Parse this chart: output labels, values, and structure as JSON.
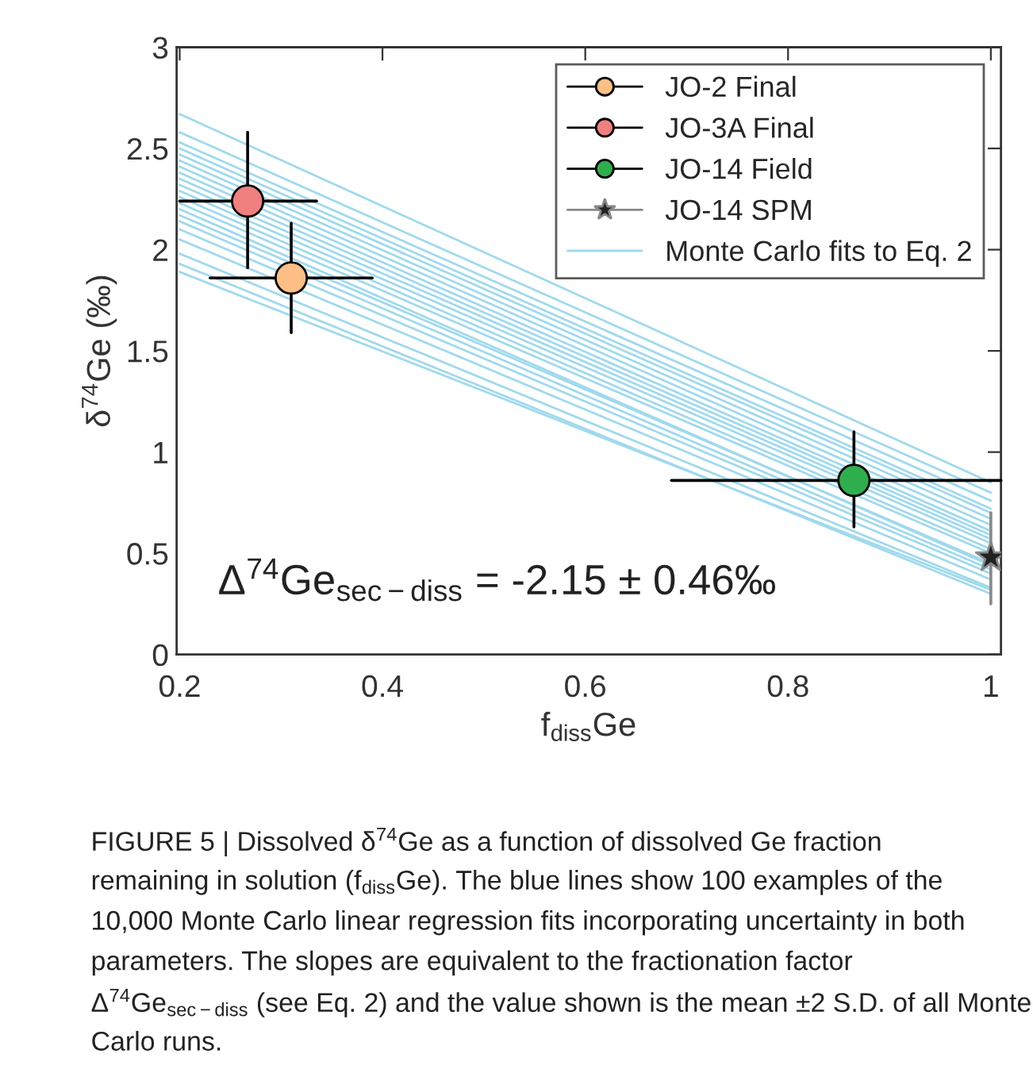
{
  "chart_data": {
    "type": "scatter",
    "xlabel": "f$_{diss}$Ge",
    "ylabel": "δ$^{74}$Ge (‰)",
    "xlim": [
      0.197,
      1.01
    ],
    "xticks": [
      0.2,
      0.4,
      0.6,
      0.8,
      1
    ],
    "ylim": [
      0,
      3
    ],
    "yticks": [
      0,
      0.5,
      1,
      1.5,
      2,
      2.5,
      3
    ],
    "grid": false,
    "legend": "top right",
    "series": [
      {
        "type": "line",
        "name": "Monte Carlo fits to Eq. 2",
        "color": "#9fd9ee",
        "x": [
          0.2,
          1.0
        ],
        "values": [
          2.67,
          0.85
        ]
      },
      {
        "type": "line",
        "color": "#9fd9ee",
        "x": [
          0.2,
          1.0
        ],
        "values": [
          2.58,
          0.8
        ]
      },
      {
        "type": "line",
        "color": "#9fd9ee",
        "x": [
          0.2,
          1.0
        ],
        "values": [
          2.53,
          0.76
        ]
      },
      {
        "type": "line",
        "color": "#9fd9ee",
        "x": [
          0.2,
          1.0
        ],
        "values": [
          2.5,
          0.72
        ]
      },
      {
        "type": "line",
        "color": "#9fd9ee",
        "x": [
          0.2,
          1.0
        ],
        "values": [
          2.47,
          0.7
        ]
      },
      {
        "type": "line",
        "color": "#9fd9ee",
        "x": [
          0.2,
          1.0
        ],
        "values": [
          2.44,
          0.67
        ]
      },
      {
        "type": "line",
        "color": "#9fd9ee",
        "x": [
          0.2,
          1.0
        ],
        "values": [
          2.41,
          0.64
        ]
      },
      {
        "type": "line",
        "color": "#9fd9ee",
        "x": [
          0.2,
          1.0
        ],
        "values": [
          2.38,
          0.61
        ]
      },
      {
        "type": "line",
        "color": "#9fd9ee",
        "x": [
          0.2,
          1.0
        ],
        "values": [
          2.35,
          0.59
        ]
      },
      {
        "type": "line",
        "color": "#9fd9ee",
        "x": [
          0.2,
          1.0
        ],
        "values": [
          2.32,
          0.57
        ]
      },
      {
        "type": "line",
        "color": "#9fd9ee",
        "x": [
          0.2,
          1.0
        ],
        "values": [
          2.29,
          0.55
        ]
      },
      {
        "type": "line",
        "color": "#9fd9ee",
        "x": [
          0.2,
          1.0
        ],
        "values": [
          2.26,
          0.52
        ]
      },
      {
        "type": "line",
        "color": "#9fd9ee",
        "x": [
          0.2,
          1.0
        ],
        "values": [
          2.23,
          0.5
        ]
      },
      {
        "type": "line",
        "color": "#9fd9ee",
        "x": [
          0.2,
          1.0
        ],
        "values": [
          2.2,
          0.44
        ]
      },
      {
        "type": "line",
        "color": "#9fd9ee",
        "x": [
          0.2,
          1.0
        ],
        "values": [
          2.17,
          0.45
        ]
      },
      {
        "type": "line",
        "color": "#9fd9ee",
        "x": [
          0.2,
          1.0
        ],
        "values": [
          2.14,
          0.42
        ]
      },
      {
        "type": "line",
        "color": "#9fd9ee",
        "x": [
          0.2,
          1.0
        ],
        "values": [
          2.1,
          0.4
        ]
      },
      {
        "type": "line",
        "color": "#9fd9ee",
        "x": [
          0.2,
          1.0
        ],
        "values": [
          2.05,
          0.37
        ]
      },
      {
        "type": "line",
        "color": "#9fd9ee",
        "x": [
          0.2,
          1.0
        ],
        "values": [
          1.98,
          0.33
        ]
      },
      {
        "type": "line",
        "color": "#9fd9ee",
        "x": [
          0.2,
          1.0
        ],
        "values": [
          1.93,
          0.3
        ]
      },
      {
        "type": "line",
        "color": "#9fd9ee",
        "x": [
          0.2,
          1.0
        ],
        "values": [
          1.89,
          0.32
        ]
      },
      {
        "name": "JO-2 Final",
        "color": "#fdbf85",
        "marker": "circle",
        "x": [
          0.31
        ],
        "values": [
          1.86
        ],
        "errors": [
          [
            1.59,
            2.13
          ]
        ],
        "xerrors": [
          [
            0.23,
            0.39
          ]
        ]
      },
      {
        "name": "JO-3A Final",
        "color": "#f08080",
        "marker": "circle",
        "x": [
          0.267
        ],
        "values": [
          2.24
        ],
        "errors": [
          [
            1.91,
            2.58
          ]
        ],
        "xerrors": [
          [
            0.2,
            0.335
          ]
        ]
      },
      {
        "name": "JO-14 Field",
        "color": "#2fae4e",
        "marker": "circle",
        "x": [
          0.865
        ],
        "values": [
          0.86
        ],
        "errors": [
          [
            0.63,
            1.1
          ]
        ],
        "xerrors": [
          [
            0.685,
            1.01
          ]
        ]
      },
      {
        "name": "JO-14 SPM",
        "color": "#222222",
        "marker": "star",
        "x": [
          1.0
        ],
        "values": [
          0.48
        ],
        "errors": [
          [
            0.25,
            0.7
          ]
        ]
      }
    ],
    "annotations": [
      "Δ$^{74}$Ge$_{sec−diss}$ = -2.15 ± 0.46‰",
      "FIGURE 5 | Dissolved δ$^{74}$Ge as a function of dissolved Ge fraction",
      "remaining in solution (f$_{diss}$Ge). The blue lines show 100 examples of the",
      "10,000 Monte Carlo linear regression fits incorporating uncertainty in both",
      "parameters. The slopes are equivalent to the fractionation factor",
      "Δ$^{74}$Ge$_{sec−diss}$ (see Eq. 2) and the value shown is the mean ±2 S.D. of all Monte",
      "Carlo runs."
    ]
  }
}
